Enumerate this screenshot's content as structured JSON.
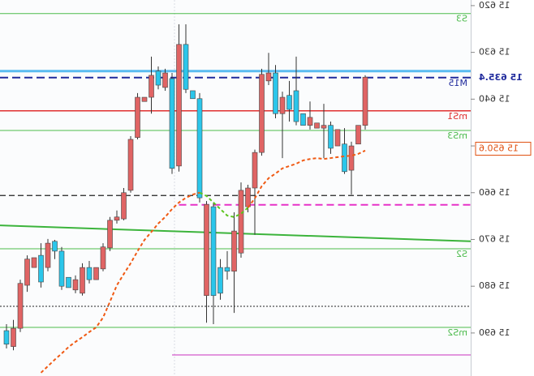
{
  "chart_data": {
    "type": "candlestick",
    "mirrored": true,
    "y_inverted": true,
    "ylim": [
      15618.8,
      15699.2
    ],
    "yticks": [
      {
        "value": 15620,
        "label": "15 620"
      },
      {
        "value": 15630,
        "label": "15 630"
      },
      {
        "value": 15640,
        "label": "15 640"
      },
      {
        "value": 15650,
        "label": "15 650"
      },
      {
        "value": 15660,
        "label": "15 660"
      },
      {
        "value": 15670,
        "label": "15 670"
      },
      {
        "value": 15680,
        "label": "15 680"
      },
      {
        "value": 15690,
        "label": "15 690"
      }
    ],
    "up_color": "#2bc6ea",
    "down_color": "#e06464",
    "open": [
      15689.5,
      15692.9,
      15689.0,
      15679.8,
      15676.0,
      15673.4,
      15676.0,
      15670.4,
      15672.5,
      15678.1,
      15680.8,
      15681.5,
      15676.0,
      15678.6,
      15676.3,
      15671.8,
      15665.9,
      15665.6,
      15659.5,
      15648.2,
      15640.5,
      15639.6,
      15634.0,
      15637.5,
      15635.6,
      15654.3,
      15628.3,
      15638.2,
      15639.9,
      15682.0,
      15663.0,
      15676.0,
      15676.0,
      15676.8,
      15672.9,
      15663.0,
      15659.0,
      15651.4,
      15636.1,
      15634.4,
      15643.1,
      15639.2,
      15638.2,
      15643.1,
      15645.6,
      15646.2,
      15646.2,
      15645.6,
      15650.0,
      15649.6,
      15655.2,
      15649.6,
      15645.6
    ],
    "high": [
      15693.3,
      15693.7,
      15689.8,
      15681.2,
      15676.0,
      15680.3,
      15676.8,
      15674.2,
      15680.8,
      15680.3,
      15681.5,
      15682.0,
      15679.4,
      15678.6,
      15676.8,
      15672.5,
      15666.6,
      15665.9,
      15660.0,
      15648.6,
      15640.5,
      15643.1,
      15637.9,
      15638.2,
      15656.0,
      15655.5,
      15638.7,
      15639.9,
      15662.1,
      15687.8,
      15688.1,
      15682.9,
      15678.6,
      15685.7,
      15673.9,
      15664.2,
      15669.0,
      15652.1,
      15637.0,
      15644.1,
      15652.6,
      15644.8,
      15645.6,
      15645.6,
      15646.5,
      15646.2,
      15652.6,
      15651.7,
      15650.0,
      15656.0,
      15660.4,
      15649.6,
      15646.5
    ],
    "low": [
      15688.1,
      15687.2,
      15678.6,
      15673.4,
      15673.9,
      15670.8,
      15669.9,
      15670.1,
      15671.6,
      15678.1,
      15677.7,
      15675.1,
      15674.6,
      15676.0,
      15670.8,
      15665.2,
      15663.8,
      15659.0,
      15647.9,
      15638.7,
      15639.6,
      15630.9,
      15633.0,
      15633.5,
      15634.4,
      15624.0,
      15624.0,
      15638.2,
      15638.7,
      15661.8,
      15662.1,
      15674.2,
      15672.5,
      15664.2,
      15657.8,
      15658.3,
      15650.8,
      15633.5,
      15630.1,
      15632.7,
      15638.4,
      15636.1,
      15630.9,
      15643.1,
      15640.5,
      15645.1,
      15641.0,
      15644.8,
      15646.5,
      15646.2,
      15649.1,
      15645.6,
      15634.9
    ],
    "close": [
      15692.4,
      15689.0,
      15679.4,
      15674.2,
      15673.9,
      15679.1,
      15670.8,
      15672.5,
      15680.0,
      15680.3,
      15678.6,
      15676.0,
      15678.6,
      15676.0,
      15671.6,
      15665.9,
      15665.2,
      15660.0,
      15648.6,
      15639.6,
      15639.6,
      15634.9,
      15637.0,
      15634.4,
      15654.8,
      15628.3,
      15637.9,
      15639.9,
      15661.1,
      15662.5,
      15682.0,
      15681.5,
      15676.8,
      15668.2,
      15659.5,
      15659.0,
      15651.4,
      15634.7,
      15634.4,
      15643.1,
      15639.6,
      15642.2,
      15644.8,
      15645.6,
      15643.9,
      15645.1,
      15645.6,
      15650.5,
      15646.5,
      15655.5,
      15650.0,
      15645.6,
      15635.3
    ],
    "ma": [
      {
        "color": "#f05a14",
        "values": [
          null,
          null,
          null,
          null,
          null,
          15698.5,
          15697.1,
          15695.7,
          15694.4,
          15693.0,
          15691.9,
          15690.9,
          15689.8,
          15688.8,
          15686.7,
          15683.3,
          15679.8,
          15677.4,
          15675.1,
          15672.5,
          15670.1,
          15668.4,
          15666.6,
          15665.2,
          15663.5,
          15662.1,
          15661.1,
          15660.4,
          15660.0,
          null,
          null,
          null,
          null,
          null,
          null,
          15663.2,
          15661.2,
          15658.6,
          15656.9,
          15655.9,
          15654.8,
          15654.3,
          15653.8,
          15653.1,
          15652.8,
          15652.6,
          15652.8,
          15652.6,
          15652.4,
          15652.2,
          15652.1,
          15651.7,
          15651.0
        ]
      },
      {
        "color": "#5cc41e",
        "values": [
          null,
          null,
          null,
          null,
          null,
          null,
          null,
          null,
          null,
          null,
          null,
          null,
          null,
          null,
          null,
          null,
          null,
          null,
          null,
          null,
          null,
          null,
          null,
          null,
          null,
          null,
          null,
          null,
          15660.0,
          15660.7,
          15662.1,
          15663.5,
          15664.9,
          15665.2,
          15664.5,
          15663.2,
          null,
          null,
          null,
          null,
          null,
          null,
          null,
          null,
          null,
          null,
          null,
          null,
          null,
          null,
          null,
          null,
          null
        ]
      }
    ],
    "levels": [
      {
        "value": 15621.7,
        "color": "#4cbb4c",
        "width": 1,
        "label": "S3"
      },
      {
        "value": 15634.0,
        "color": "#5bbcf0",
        "width": 3
      },
      {
        "value": 15635.4,
        "color": "#1f2a9c",
        "width": 2,
        "dash": "10 5",
        "label": "M15"
      },
      {
        "value": 15642.5,
        "color": "#e03030",
        "width": 1.5,
        "label": "mS1"
      },
      {
        "value": 15646.7,
        "color": "#4cbb4c",
        "width": 1,
        "label": "mS3"
      },
      {
        "value": 15660.6,
        "color": "#222222",
        "width": 1.2,
        "dash": "7 4"
      },
      {
        "value": 15662.6,
        "color": "#e632c8",
        "width": 2,
        "dash": "9 5",
        "start": 25
      },
      {
        "value": 15672.0,
        "color": "#4cbb4c",
        "width": 1,
        "label": "S2"
      },
      {
        "value": 15684.3,
        "color": "#222222",
        "width": 1,
        "dash": "2 2"
      },
      {
        "value": 15688.8,
        "color": "#4cbb4c",
        "width": 1,
        "label": "mS2"
      },
      {
        "value": 15694.7,
        "color": "#c830c0",
        "width": 1,
        "start": 24
      }
    ],
    "trend": {
      "color": "#3cb43c",
      "values": [
        15667.0,
        15670.4
      ]
    },
    "price_tags": [
      {
        "value": 15635.4,
        "label": "15 635.4",
        "color": "#1f2a9c"
      },
      {
        "value": 15650.6,
        "label": "15 650.6",
        "color": "#e05010"
      }
    ]
  }
}
